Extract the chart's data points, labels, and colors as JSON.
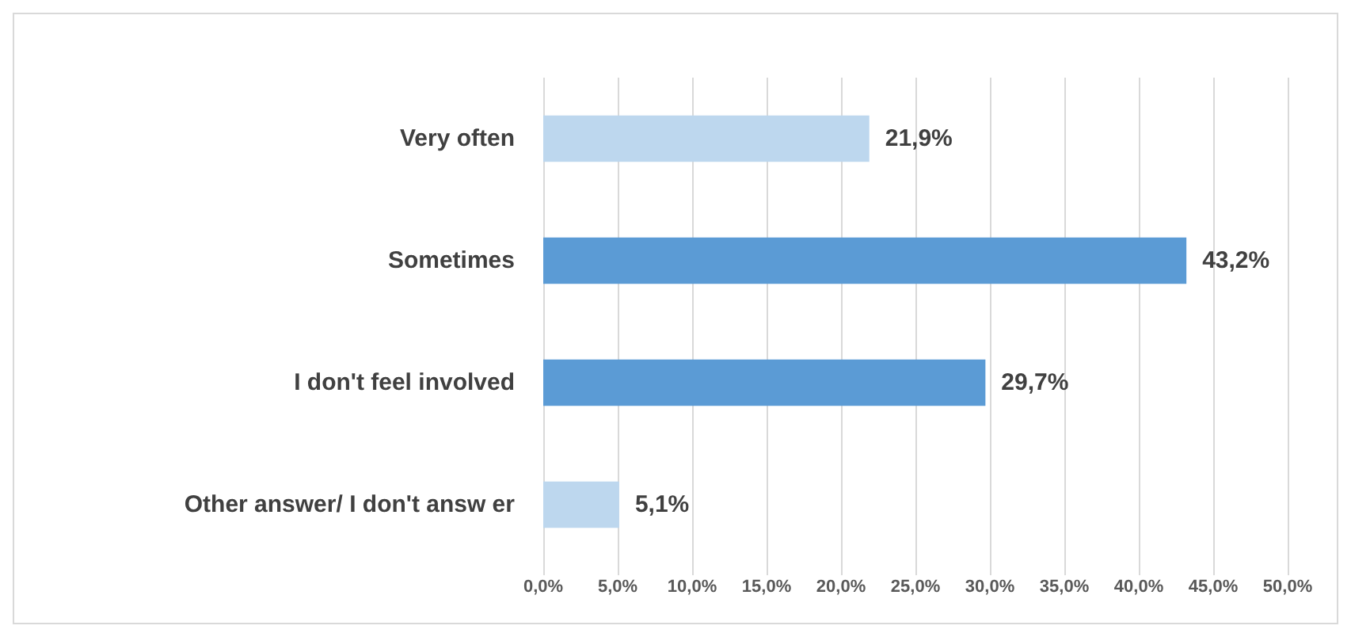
{
  "chart_data": {
    "type": "bar",
    "orientation": "horizontal",
    "categories": [
      "Very often",
      "Sometimes",
      "I don't feel involved",
      "Other answer/ I don't answ er"
    ],
    "values": [
      21.9,
      43.2,
      29.7,
      5.1
    ],
    "colors": [
      "#bdd7ee",
      "#5b9bd5",
      "#5b9bd5",
      "#bdd7ee"
    ],
    "value_labels": [
      "21,9%",
      "43,2%",
      "29,7%",
      "5,1%"
    ],
    "xlim": [
      0,
      50
    ],
    "xticks": [
      {
        "value": 0,
        "label": "0,0%"
      },
      {
        "value": 5,
        "label": "5,0%"
      },
      {
        "value": 10,
        "label": "10,0%"
      },
      {
        "value": 15,
        "label": "15,0%"
      },
      {
        "value": 20,
        "label": "20,0%"
      },
      {
        "value": 25,
        "label": "25,0%"
      },
      {
        "value": 30,
        "label": "30,0%"
      },
      {
        "value": 35,
        "label": "35,0%"
      },
      {
        "value": 40,
        "label": "40,0%"
      },
      {
        "value": 45,
        "label": "45,0%"
      },
      {
        "value": 50,
        "label": "50,0%"
      }
    ],
    "grid": "x"
  }
}
